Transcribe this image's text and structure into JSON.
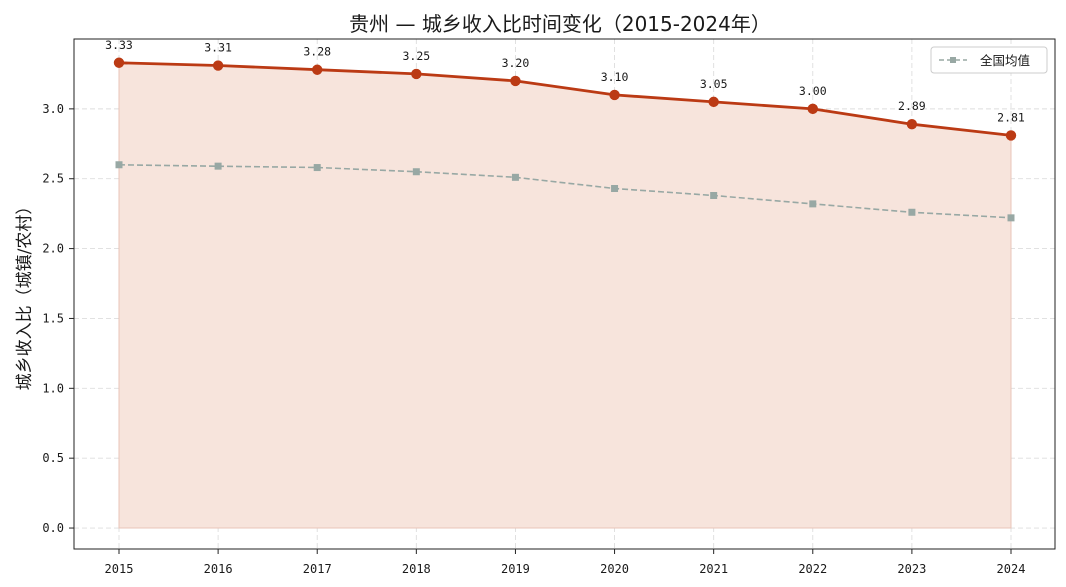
{
  "chart_data": {
    "type": "line",
    "title": "贵州 — 城乡收入比时间变化（2015-2024年）",
    "xlabel": "",
    "ylabel": "城乡收入比（城镇/农村）",
    "x": [
      "2015",
      "2016",
      "2017",
      "2018",
      "2019",
      "2020",
      "2021",
      "2022",
      "2023",
      "2024"
    ],
    "ylim": [
      -0.15,
      3.5
    ],
    "yticks": [
      "0.0",
      "0.5",
      "1.0",
      "1.5",
      "2.0",
      "2.5",
      "3.0"
    ],
    "grid": true,
    "legend_position": "top-right",
    "series": [
      {
        "name": "",
        "values": [
          3.33,
          3.31,
          3.28,
          3.25,
          3.2,
          3.1,
          3.05,
          3.0,
          2.89,
          2.81
        ],
        "labels": [
          "3.33",
          "3.31",
          "3.28",
          "3.25",
          "3.20",
          "3.10",
          "3.05",
          "3.00",
          "2.89",
          "2.81"
        ],
        "color": "#bb3a14",
        "fill_color": "#f7e4dc",
        "style": "solid",
        "marker": "circle"
      },
      {
        "name": "全国均值",
        "values": [
          2.6,
          2.59,
          2.58,
          2.55,
          2.51,
          2.43,
          2.38,
          2.32,
          2.26,
          2.22
        ],
        "color": "#98a8a4",
        "style": "dashed",
        "marker": "square"
      }
    ]
  }
}
